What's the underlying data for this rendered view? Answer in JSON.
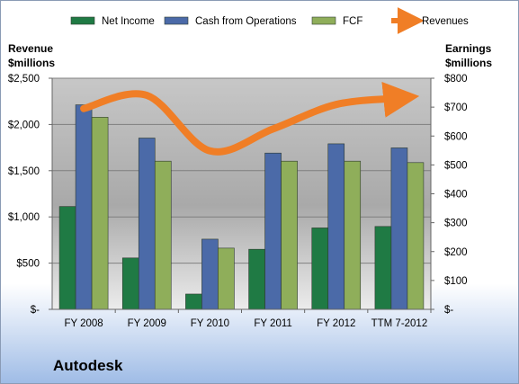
{
  "chart_data": {
    "type": "bar",
    "categories": [
      "FY 2008",
      "FY 2009",
      "FY 2010",
      "FY 2011",
      "FY 2012",
      "TTM 7-2012"
    ],
    "series": [
      {
        "name": "Net Income",
        "axis": "right",
        "color": "#1f7a44",
        "values": [
          356,
          178,
          53,
          208,
          282,
          287
        ]
      },
      {
        "name": "Cash from Operations",
        "axis": "right",
        "color": "#4b6aa8",
        "values": [
          708,
          593,
          243,
          541,
          573,
          559
        ]
      },
      {
        "name": "FCF",
        "axis": "right",
        "color": "#8fae5a",
        "values": [
          665,
          513,
          212,
          513,
          513,
          508
        ]
      },
      {
        "name": "Revenues",
        "axis": "left",
        "type": "line",
        "color": "#f07e26",
        "values": [
          2172,
          2315,
          1714,
          1952,
          2216,
          2285
        ]
      }
    ],
    "y_left": {
      "label_line1": "Revenue",
      "label_line2": "$millions",
      "range": [
        0,
        2500
      ],
      "ticks": [
        "$-",
        "$500",
        "$1,000",
        "$1,500",
        "$2,000",
        "$2,500"
      ]
    },
    "y_right": {
      "label_line1": "Earnings",
      "label_line2": "$millions",
      "range": [
        0,
        800
      ],
      "ticks": [
        "$-",
        "$100",
        "$200",
        "$300",
        "$400",
        "$500",
        "$600",
        "$700",
        "$800"
      ]
    },
    "grid": true,
    "legend": "top"
  },
  "footer_title": "Autodesk"
}
